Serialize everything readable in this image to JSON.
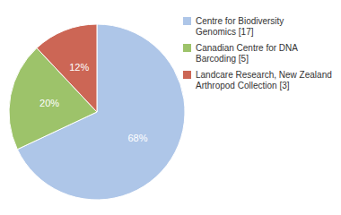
{
  "chart_data": {
    "type": "pie",
    "categories": [
      "Centre for Biodiversity\nGenomics [17]",
      "Canadian Centre for DNA\nBarcoding [5]",
      "Landcare Research, New Zealand\nArthropod Collection [3]"
    ],
    "values": [
      68,
      20,
      12
    ],
    "value_labels": [
      "68%",
      "20%",
      "12%"
    ],
    "colors": [
      "#aec6e8",
      "#9dc36a",
      "#cc6655"
    ],
    "data_labels": true,
    "legend": "upper right"
  }
}
